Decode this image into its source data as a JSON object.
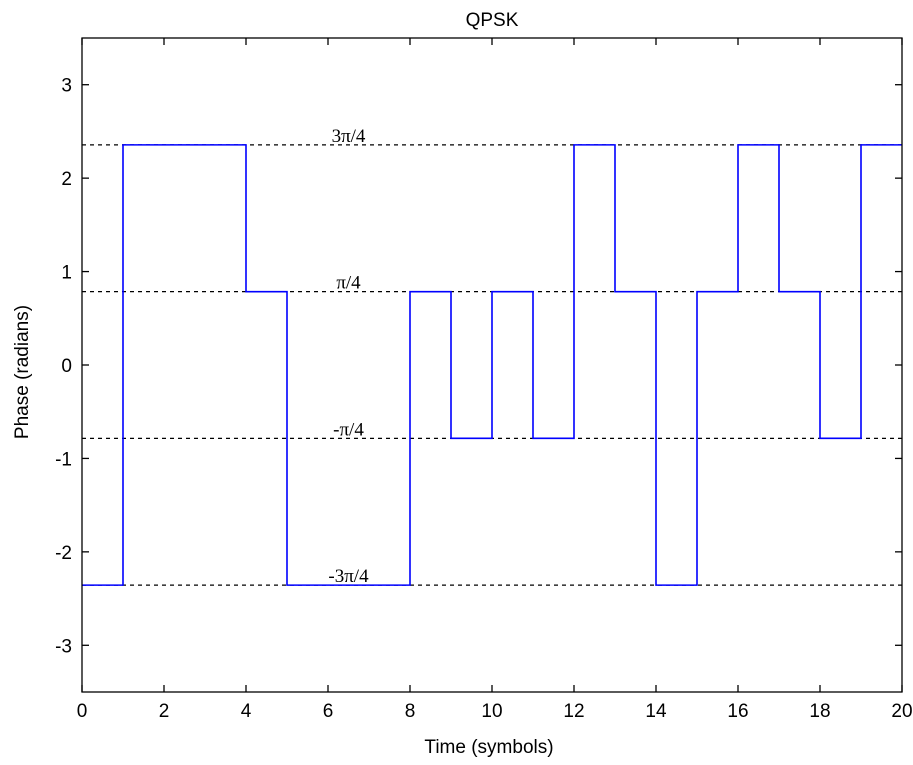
{
  "chart_data": {
    "type": "line",
    "title": "QPSK",
    "xlabel": "Time (symbols)",
    "ylabel": "Phase (radians)",
    "xlim": [
      0,
      20
    ],
    "ylim": [
      -3.5,
      3.5
    ],
    "xticks": [
      0,
      2,
      4,
      6,
      8,
      10,
      12,
      14,
      16,
      18,
      20
    ],
    "yticks": [
      -3,
      -2,
      -1,
      0,
      1,
      2,
      3
    ],
    "grid": false,
    "series": [
      {
        "color": "#0000ff",
        "step": true,
        "x": [
          0,
          1,
          2,
          3,
          4,
          5,
          6,
          7,
          8,
          9,
          10,
          11,
          12,
          13,
          14,
          15,
          16,
          17,
          18,
          19
        ],
        "y": [
          -2.356,
          2.356,
          2.356,
          2.356,
          0.785,
          -2.356,
          -2.356,
          -2.356,
          0.785,
          -0.785,
          0.785,
          -0.785,
          2.356,
          0.785,
          -2.356,
          0.785,
          2.356,
          0.785,
          -0.785,
          2.356
        ],
        "x_end": 20
      }
    ],
    "reference_lines": [
      {
        "y": 2.356,
        "label": "3π/4",
        "label_x": 6.5
      },
      {
        "y": 0.785,
        "label": "π/4",
        "label_x": 6.5
      },
      {
        "y": -0.785,
        "label": "-π/4",
        "label_x": 6.5
      },
      {
        "y": -2.356,
        "label": "-3π/4",
        "label_x": 6.5
      }
    ]
  }
}
